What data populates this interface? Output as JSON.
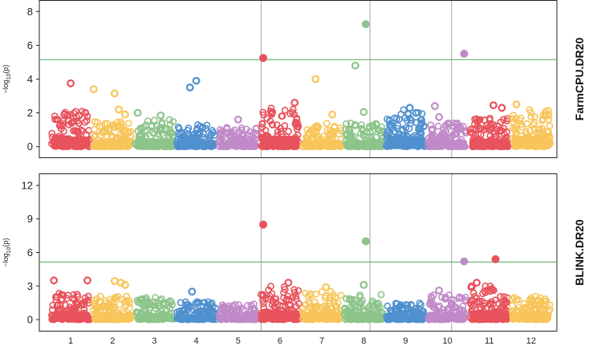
{
  "chart_data": [
    {
      "type": "scatter",
      "title": "FarmCPU.DR20",
      "ylabel": "-log10(p)",
      "ylabel_parts": {
        "prefix": "−log",
        "sub": "10",
        "suffix": "(p)"
      },
      "yticks": [
        0,
        2,
        4,
        6,
        8
      ],
      "ylim": [
        -0.3,
        8.3
      ],
      "threshold": 5.15,
      "threshold_color": "#55a85a",
      "significant_lines_x": [
        5.55,
        8.15,
        10.1
      ],
      "chromosomes": [
        "1",
        "2",
        "3",
        "4",
        "5",
        "6",
        "7",
        "8",
        "9",
        "10",
        "11",
        "12"
      ],
      "chromosome_colors": [
        "#e8525c",
        "#f7c55a",
        "#8cc48a",
        "#4f90cf",
        "#c08ac8"
      ],
      "band_heights": [
        2.1,
        1.5,
        1.6,
        1.4,
        1.2,
        2.3,
        1.5,
        1.4,
        2.2,
        1.4,
        1.7,
        2.3
      ],
      "points": [
        {
          "chr": 1,
          "pos": 0.5,
          "y": 3.75
        },
        {
          "chr": 1,
          "pos": 0.35,
          "y": 1.9
        },
        {
          "chr": 1,
          "pos": 0.7,
          "y": 1.85
        },
        {
          "chr": 1,
          "pos": 0.85,
          "y": 2.0
        },
        {
          "chr": 2,
          "pos": 0.05,
          "y": 3.4
        },
        {
          "chr": 2,
          "pos": 0.55,
          "y": 3.15
        },
        {
          "chr": 2,
          "pos": 0.65,
          "y": 2.2
        },
        {
          "chr": 2,
          "pos": 0.8,
          "y": 1.9
        },
        {
          "chr": 3,
          "pos": 0.1,
          "y": 2.0
        },
        {
          "chr": 3,
          "pos": 0.65,
          "y": 1.85
        },
        {
          "chr": 4,
          "pos": 0.35,
          "y": 3.5
        },
        {
          "chr": 4,
          "pos": 0.5,
          "y": 3.9
        },
        {
          "chr": 5,
          "pos": 0.5,
          "y": 1.6
        },
        {
          "chr": 6,
          "pos": 0.1,
          "y": 5.25
        },
        {
          "chr": 6,
          "pos": 0.3,
          "y": 2.0
        },
        {
          "chr": 6,
          "pos": 0.85,
          "y": 2.6
        },
        {
          "chr": 7,
          "pos": 0.35,
          "y": 4.0
        },
        {
          "chr": 7,
          "pos": 0.75,
          "y": 1.9
        },
        {
          "chr": 8,
          "pos": 0.3,
          "y": 4.8
        },
        {
          "chr": 8,
          "pos": 0.55,
          "y": 7.25
        },
        {
          "chr": 8,
          "pos": 0.5,
          "y": 2.05
        },
        {
          "chr": 9,
          "pos": 0.6,
          "y": 2.3
        },
        {
          "chr": 9,
          "pos": 0.75,
          "y": 2.0
        },
        {
          "chr": 10,
          "pos": 0.2,
          "y": 2.4
        },
        {
          "chr": 10,
          "pos": 0.3,
          "y": 1.75
        },
        {
          "chr": 10,
          "pos": 0.9,
          "y": 5.5
        },
        {
          "chr": 11,
          "pos": 0.6,
          "y": 2.45
        },
        {
          "chr": 11,
          "pos": 0.8,
          "y": 2.3
        },
        {
          "chr": 12,
          "pos": 0.15,
          "y": 2.5
        }
      ]
    },
    {
      "type": "scatter",
      "title": "BLINK.DR20",
      "ylabel": "-log10(p)",
      "ylabel_parts": {
        "prefix": "−log",
        "sub": "10",
        "suffix": "(p)"
      },
      "yticks": [
        0,
        3,
        6,
        9,
        12
      ],
      "ylim": [
        -0.5,
        12.5
      ],
      "threshold": 5.15,
      "threshold_color": "#55a85a",
      "significant_lines_x": [
        5.55,
        8.15,
        10.1
      ],
      "chromosomes": [
        "1",
        "2",
        "3",
        "4",
        "5",
        "6",
        "7",
        "8",
        "9",
        "10",
        "11",
        "12"
      ],
      "chromosome_colors": [
        "#e8525c",
        "#f7c55a",
        "#8cc48a",
        "#4f90cf",
        "#c08ac8"
      ],
      "band_heights": [
        2.4,
        2.1,
        2.0,
        1.6,
        1.4,
        3.0,
        2.5,
        2.3,
        1.5,
        2.2,
        3.0,
        2.1
      ],
      "points": [
        {
          "chr": 1,
          "pos": 0.1,
          "y": 3.5
        },
        {
          "chr": 1,
          "pos": 0.9,
          "y": 3.5
        },
        {
          "chr": 2,
          "pos": 0.55,
          "y": 3.45
        },
        {
          "chr": 2,
          "pos": 0.7,
          "y": 3.3
        },
        {
          "chr": 2,
          "pos": 0.8,
          "y": 3.1
        },
        {
          "chr": 4,
          "pos": 0.4,
          "y": 2.5
        },
        {
          "chr": 6,
          "pos": 0.1,
          "y": 8.5
        },
        {
          "chr": 6,
          "pos": 0.7,
          "y": 3.3
        },
        {
          "chr": 7,
          "pos": 0.6,
          "y": 2.9
        },
        {
          "chr": 8,
          "pos": 0.55,
          "y": 7.0
        },
        {
          "chr": 8,
          "pos": 0.5,
          "y": 3.1
        },
        {
          "chr": 10,
          "pos": 0.9,
          "y": 5.2
        },
        {
          "chr": 10,
          "pos": 0.3,
          "y": 2.6
        },
        {
          "chr": 11,
          "pos": 0.65,
          "y": 5.4
        },
        {
          "chr": 11,
          "pos": 0.2,
          "y": 3.3
        }
      ]
    }
  ]
}
